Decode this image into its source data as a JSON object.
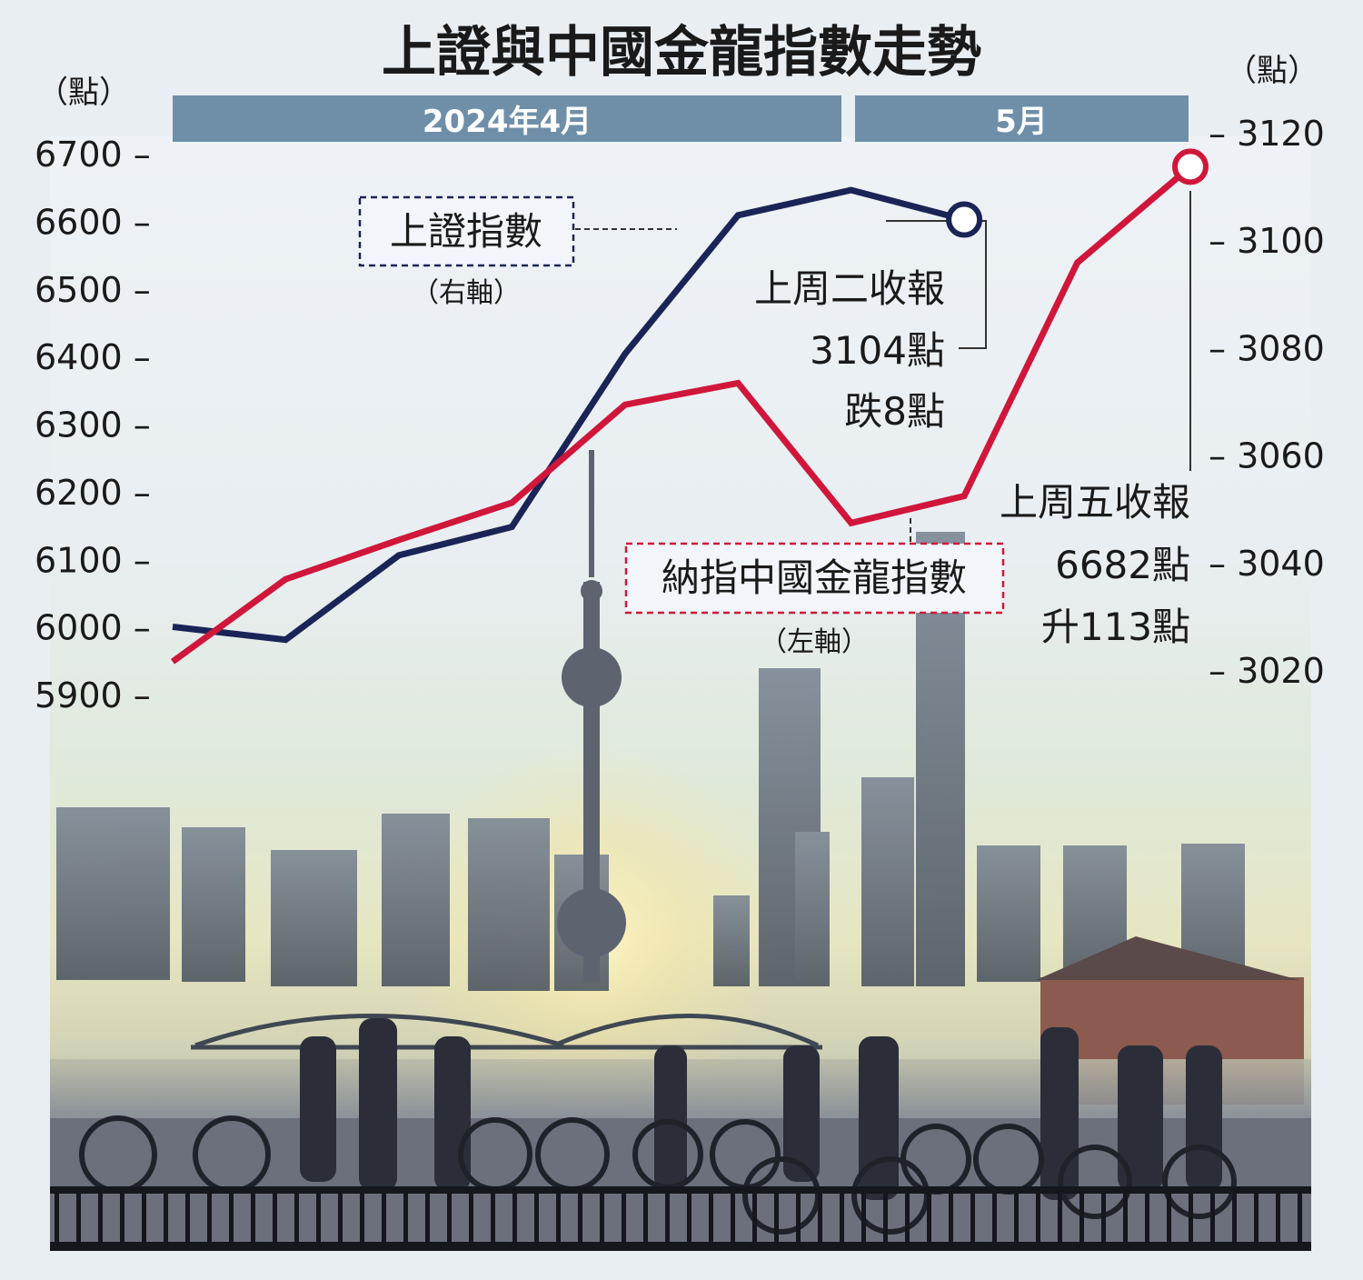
{
  "chart_data": {
    "type": "line",
    "title": "上證與中國金龍指數走勢",
    "left_axis": {
      "unit": "（點）",
      "ticks": [
        5900,
        6000,
        6100,
        6200,
        6300,
        6400,
        6500,
        6600,
        6700
      ],
      "ylim": [
        5900,
        6700
      ]
    },
    "right_axis": {
      "unit": "（點）",
      "ticks": [
        3020,
        3040,
        3060,
        3080,
        3100,
        3120
      ],
      "ylim": [
        3020,
        3120
      ]
    },
    "period_labels": [
      "2024年4月",
      "5月"
    ],
    "series": [
      {
        "name": "上證指數",
        "axis_note": "（右軸）",
        "axis": "right",
        "color": "#1b2456",
        "values": [
          3028.2,
          3025.8,
          3041.5,
          3046.8,
          3079.0,
          3104.8,
          3109.5,
          3104.0
        ]
      },
      {
        "name": "納指中國金龍指數",
        "axis_note": "（左軸）",
        "axis": "left",
        "color": "#d0163a",
        "values": [
          5950,
          6072,
          6130,
          6185,
          6330,
          6362,
          6155,
          6195,
          6540,
          6682
        ]
      }
    ],
    "annotations": [
      {
        "series": "上證指數",
        "lines": [
          "上周二收報",
          "3104點",
          "跌8點"
        ]
      },
      {
        "series": "納指中國金龍指數",
        "lines": [
          "上周五收報",
          "6682點",
          "升113點"
        ]
      }
    ]
  },
  "photo": {
    "description": "Shanghai Pudong skyline at sunrise with cyclists on the Bund"
  }
}
